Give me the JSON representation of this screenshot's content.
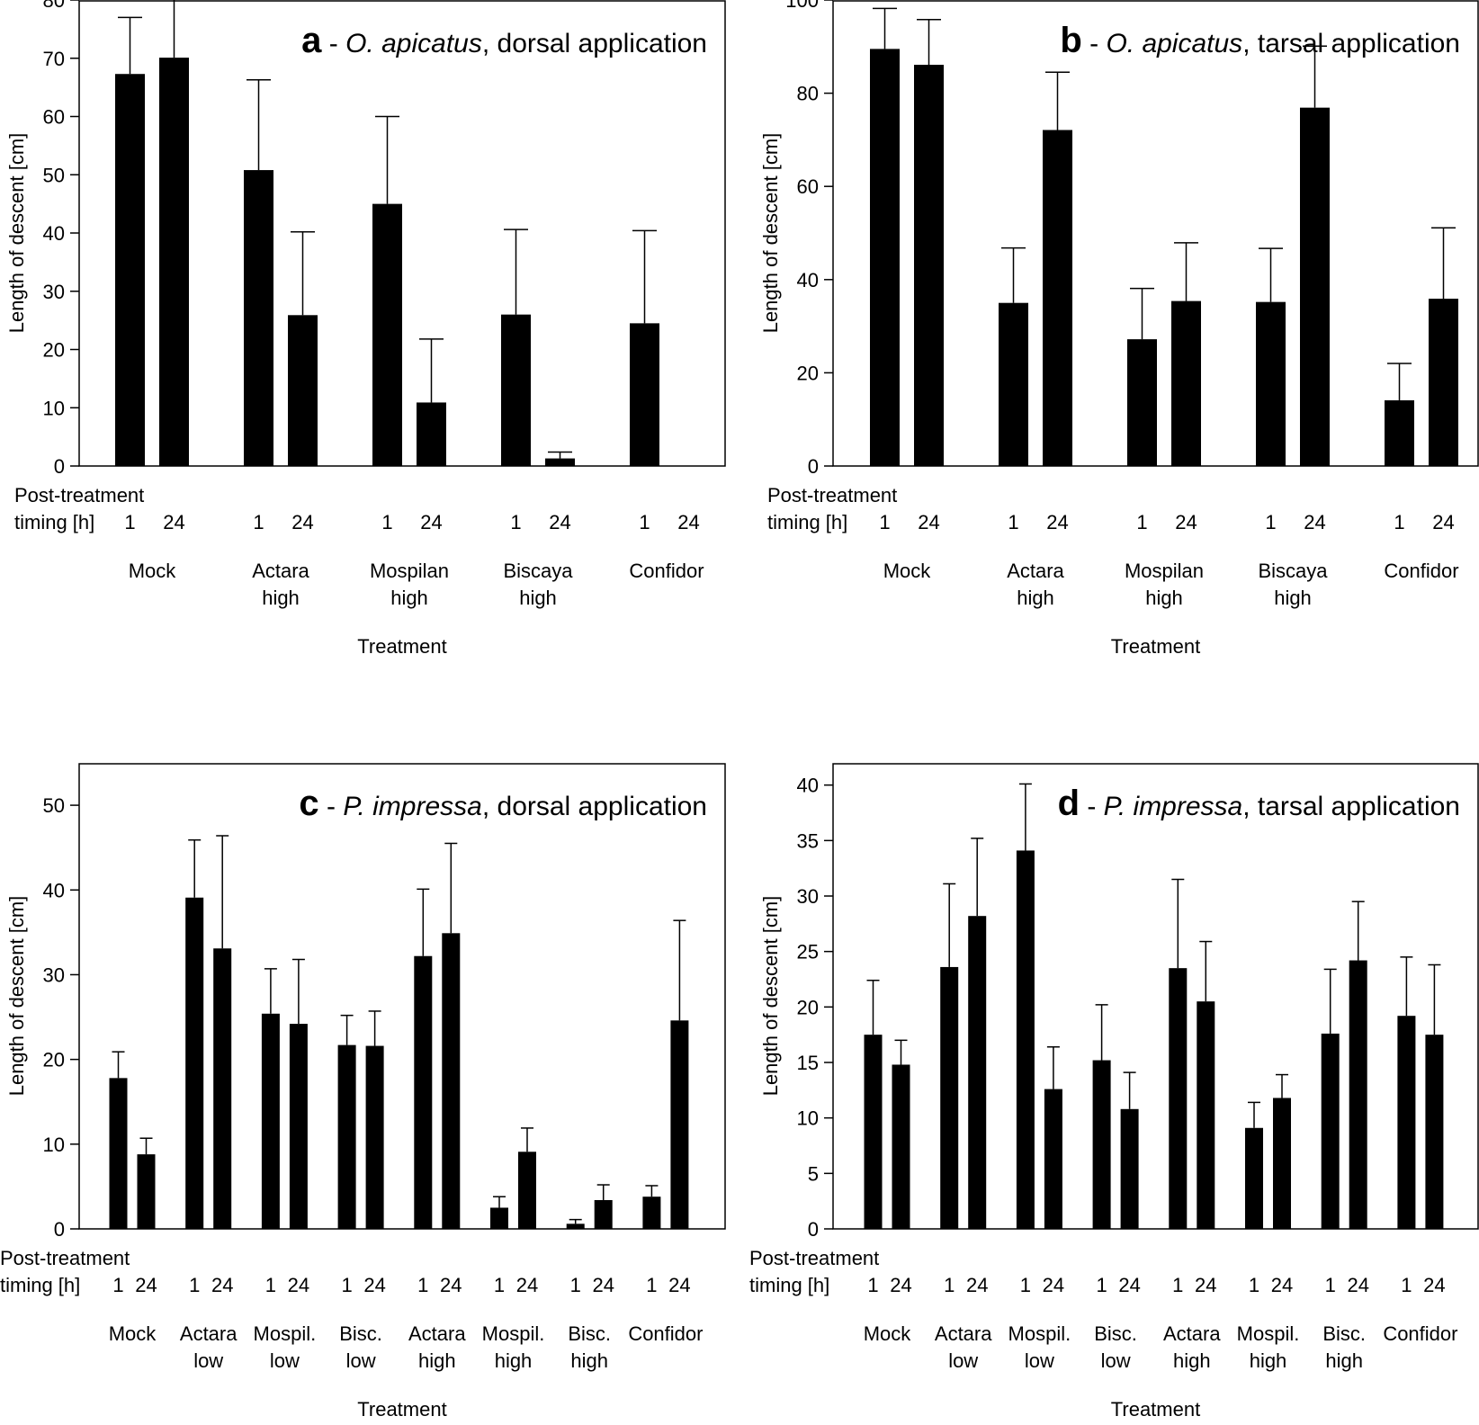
{
  "figure": {
    "y_axis_label": "Length of descent [cm]",
    "x_axis_label": "Treatment",
    "timing_label_line1": "Post-treatment",
    "timing_label_line2": "timing [h]"
  },
  "chart_data": [
    {
      "id": "a",
      "type": "bar",
      "panel_letter": "a",
      "title_parts": [
        " - ",
        "O. apicatus",
        ", dorsal application"
      ],
      "xlabel": "Treatment",
      "ylabel": "Length of descent [cm]",
      "ylim": [
        0,
        80
      ],
      "yticks": [
        0,
        10,
        20,
        30,
        40,
        50,
        60,
        70,
        80
      ],
      "grid": false,
      "timings": [
        "1",
        "24"
      ],
      "groups": [
        {
          "label": [
            "Mock"
          ],
          "values": [
            67.3,
            70.1
          ],
          "errors": [
            9.7,
            11.0
          ]
        },
        {
          "label": [
            "Actara",
            "high"
          ],
          "values": [
            50.8,
            25.9
          ],
          "errors": [
            15.5,
            14.3
          ]
        },
        {
          "label": [
            "Mospilan",
            "high"
          ],
          "values": [
            45.0,
            10.9
          ],
          "errors": [
            15.0,
            10.9
          ]
        },
        {
          "label": [
            "Biscaya",
            "high"
          ],
          "values": [
            26.0,
            1.3
          ],
          "errors": [
            14.6,
            1.1
          ]
        },
        {
          "label": [
            "Confidor"
          ],
          "values": [
            24.5,
            0
          ],
          "errors": [
            15.9,
            0
          ]
        }
      ]
    },
    {
      "id": "b",
      "type": "bar",
      "panel_letter": "b",
      "title_parts": [
        " - ",
        "O. apicatus",
        ", tarsal application"
      ],
      "xlabel": "Treatment",
      "ylabel": "Length of descent [cm]",
      "ylim": [
        0,
        100
      ],
      "yticks": [
        0,
        20,
        40,
        60,
        80,
        100
      ],
      "grid": false,
      "timings": [
        "1",
        "24"
      ],
      "groups": [
        {
          "label": [
            "Mock"
          ],
          "values": [
            89.5,
            86.1
          ],
          "errors": [
            8.7,
            9.7
          ]
        },
        {
          "label": [
            "Actara",
            "high"
          ],
          "values": [
            35.0,
            72.1
          ],
          "errors": [
            11.8,
            12.4
          ]
        },
        {
          "label": [
            "Mospilan",
            "high"
          ],
          "values": [
            27.2,
            35.4
          ],
          "errors": [
            10.9,
            12.5
          ]
        },
        {
          "label": [
            "Biscaya",
            "high"
          ],
          "values": [
            35.2,
            76.9
          ],
          "errors": [
            11.5,
            13.2
          ]
        },
        {
          "label": [
            "Confidor"
          ],
          "values": [
            14.1,
            35.9
          ],
          "errors": [
            7.9,
            15.2
          ]
        }
      ]
    },
    {
      "id": "c",
      "type": "bar",
      "panel_letter": "c",
      "title_parts": [
        " - ",
        "P. impressa",
        ", dorsal application"
      ],
      "xlabel": "Treatment",
      "ylabel": "Length of descent [cm]",
      "ylim": [
        0,
        55
      ],
      "yticks": [
        0,
        10,
        20,
        30,
        40,
        50
      ],
      "grid": false,
      "timings": [
        "1",
        "24"
      ],
      "groups": [
        {
          "label": [
            "Mock"
          ],
          "values": [
            17.8,
            8.8
          ],
          "errors": [
            3.1,
            1.9
          ]
        },
        {
          "label": [
            "Actara",
            "low"
          ],
          "values": [
            39.1,
            33.1
          ],
          "errors": [
            6.8,
            13.3
          ]
        },
        {
          "label": [
            "Mospil.",
            "low"
          ],
          "values": [
            25.4,
            24.2
          ],
          "errors": [
            5.3,
            7.6
          ]
        },
        {
          "label": [
            "Bisc.",
            "low"
          ],
          "values": [
            21.7,
            21.6
          ],
          "errors": [
            3.5,
            4.1
          ]
        },
        {
          "label": [
            "Actara",
            "high"
          ],
          "values": [
            32.2,
            34.9
          ],
          "errors": [
            7.9,
            10.6
          ]
        },
        {
          "label": [
            "Mospil.",
            "high"
          ],
          "values": [
            2.5,
            9.1
          ],
          "errors": [
            1.3,
            2.8
          ]
        },
        {
          "label": [
            "Bisc.",
            "high"
          ],
          "values": [
            0.6,
            3.4
          ],
          "errors": [
            0.5,
            1.8
          ]
        },
        {
          "label": [
            "Confidor"
          ],
          "values": [
            3.8,
            24.6
          ],
          "errors": [
            1.3,
            11.8
          ]
        }
      ]
    },
    {
      "id": "d",
      "type": "bar",
      "panel_letter": "d",
      "title_parts": [
        " - ",
        "P. impressa",
        ", tarsal application"
      ],
      "xlabel": "Treatment",
      "ylabel": "Length of descent [cm]",
      "ylim": [
        0,
        42
      ],
      "yticks": [
        0,
        5,
        10,
        15,
        20,
        25,
        30,
        35,
        40
      ],
      "grid": false,
      "timings": [
        "1",
        "24"
      ],
      "groups": [
        {
          "label": [
            "Mock"
          ],
          "values": [
            17.5,
            14.8
          ],
          "errors": [
            4.9,
            2.2
          ]
        },
        {
          "label": [
            "Actara",
            "low"
          ],
          "values": [
            23.6,
            28.2
          ],
          "errors": [
            7.5,
            7.0
          ]
        },
        {
          "label": [
            "Mospil.",
            "low"
          ],
          "values": [
            34.1,
            12.6
          ],
          "errors": [
            6.0,
            3.8
          ]
        },
        {
          "label": [
            "Bisc.",
            "low"
          ],
          "values": [
            15.2,
            10.8
          ],
          "errors": [
            5.0,
            3.3
          ]
        },
        {
          "label": [
            "Actara",
            "high"
          ],
          "values": [
            23.5,
            20.5
          ],
          "errors": [
            8.0,
            5.4
          ]
        },
        {
          "label": [
            "Mospil.",
            "high"
          ],
          "values": [
            9.1,
            11.8
          ],
          "errors": [
            2.3,
            2.1
          ]
        },
        {
          "label": [
            "Bisc.",
            "high"
          ],
          "values": [
            17.6,
            24.2
          ],
          "errors": [
            5.8,
            5.3
          ]
        },
        {
          "label": [
            "Confidor"
          ],
          "values": [
            19.2,
            17.5
          ],
          "errors": [
            5.3,
            6.3
          ]
        }
      ]
    }
  ]
}
